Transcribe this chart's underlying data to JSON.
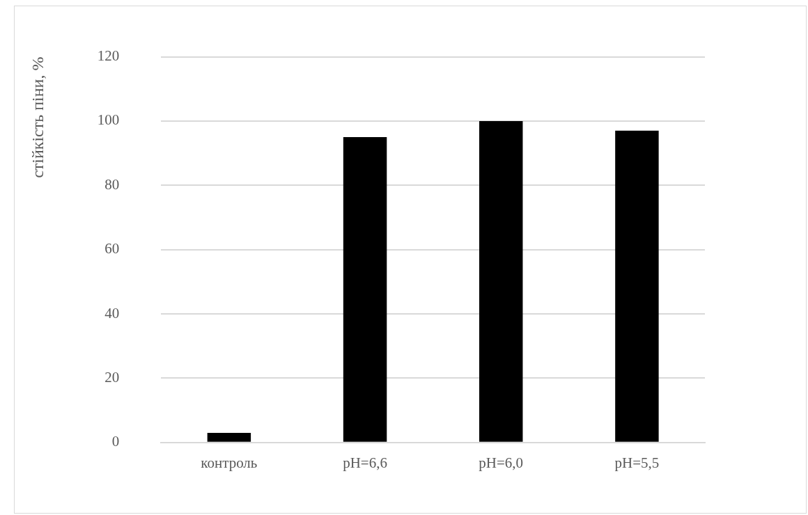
{
  "chart_data": {
    "type": "bar",
    "ylabel": "стійкість піни, %",
    "categories": [
      "контроль",
      "pH=6,6",
      "pH=6,0",
      "pH=5,5"
    ],
    "values": [
      3,
      95,
      100,
      97
    ],
    "color": "#000000",
    "ylim": [
      0,
      120
    ],
    "yticks": [
      0,
      20,
      40,
      60,
      80,
      100,
      120
    ],
    "grid": "y",
    "legend": false
  }
}
